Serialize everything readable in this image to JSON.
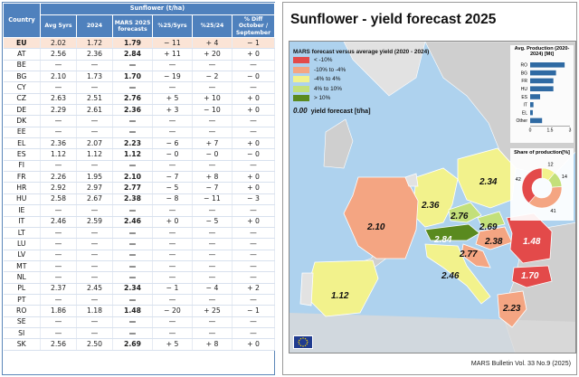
{
  "table": {
    "country_header": "Country",
    "group_header": "Sunflower (t/ha)",
    "columns": [
      "Avg 5yrs",
      "2024",
      "MARS 2025 forecasts",
      "%25/5yrs",
      "%25/24",
      "% Diff October / September"
    ],
    "rows": [
      {
        "c": "EU",
        "a": "2.02",
        "b": "1.72",
        "m": "1.79",
        "p1": "− 11",
        "p2": "+ 4",
        "d": "− 1"
      },
      {
        "c": "AT",
        "a": "2.56",
        "b": "2.36",
        "m": "2.84",
        "p1": "+ 11",
        "p2": "+ 20",
        "d": "+ 0"
      },
      {
        "c": "BE",
        "a": "—",
        "b": "—",
        "m": "—",
        "p1": "—",
        "p2": "—",
        "d": "—"
      },
      {
        "c": "BG",
        "a": "2.10",
        "b": "1.73",
        "m": "1.70",
        "p1": "− 19",
        "p2": "− 2",
        "d": "− 0"
      },
      {
        "c": "CY",
        "a": "—",
        "b": "—",
        "m": "—",
        "p1": "—",
        "p2": "—",
        "d": "—"
      },
      {
        "c": "CZ",
        "a": "2.63",
        "b": "2.51",
        "m": "2.76",
        "p1": "+ 5",
        "p2": "+ 10",
        "d": "+ 0"
      },
      {
        "c": "DE",
        "a": "2.29",
        "b": "2.61",
        "m": "2.36",
        "p1": "+ 3",
        "p2": "− 10",
        "d": "+ 0"
      },
      {
        "c": "DK",
        "a": "—",
        "b": "—",
        "m": "—",
        "p1": "—",
        "p2": "—",
        "d": "—"
      },
      {
        "c": "EE",
        "a": "—",
        "b": "—",
        "m": "—",
        "p1": "—",
        "p2": "—",
        "d": "—"
      },
      {
        "c": "EL",
        "a": "2.36",
        "b": "2.07",
        "m": "2.23",
        "p1": "− 6",
        "p2": "+ 7",
        "d": "+ 0"
      },
      {
        "c": "ES",
        "a": "1.12",
        "b": "1.12",
        "m": "1.12",
        "p1": "− 0",
        "p2": "− 0",
        "d": "− 0"
      },
      {
        "c": "FI",
        "a": "—",
        "b": "—",
        "m": "—",
        "p1": "—",
        "p2": "—",
        "d": "—"
      },
      {
        "c": "FR",
        "a": "2.26",
        "b": "1.95",
        "m": "2.10",
        "p1": "− 7",
        "p2": "+ 8",
        "d": "+ 0"
      },
      {
        "c": "HR",
        "a": "2.92",
        "b": "2.97",
        "m": "2.77",
        "p1": "− 5",
        "p2": "− 7",
        "d": "+ 0"
      },
      {
        "c": "HU",
        "a": "2.58",
        "b": "2.67",
        "m": "2.38",
        "p1": "− 8",
        "p2": "− 11",
        "d": "− 3"
      },
      {
        "c": "IE",
        "a": "—",
        "b": "—",
        "m": "—",
        "p1": "—",
        "p2": "—",
        "d": "—"
      },
      {
        "c": "IT",
        "a": "2.46",
        "b": "2.59",
        "m": "2.46",
        "p1": "+ 0",
        "p2": "− 5",
        "d": "+ 0"
      },
      {
        "c": "LT",
        "a": "—",
        "b": "—",
        "m": "—",
        "p1": "—",
        "p2": "—",
        "d": "—"
      },
      {
        "c": "LU",
        "a": "—",
        "b": "—",
        "m": "—",
        "p1": "—",
        "p2": "—",
        "d": "—"
      },
      {
        "c": "LV",
        "a": "—",
        "b": "—",
        "m": "—",
        "p1": "—",
        "p2": "—",
        "d": "—"
      },
      {
        "c": "MT",
        "a": "—",
        "b": "—",
        "m": "—",
        "p1": "—",
        "p2": "—",
        "d": "—"
      },
      {
        "c": "NL",
        "a": "—",
        "b": "—",
        "m": "—",
        "p1": "—",
        "p2": "—",
        "d": "—"
      },
      {
        "c": "PL",
        "a": "2.37",
        "b": "2.45",
        "m": "2.34",
        "p1": "− 1",
        "p2": "− 4",
        "d": "+ 2"
      },
      {
        "c": "PT",
        "a": "—",
        "b": "—",
        "m": "—",
        "p1": "—",
        "p2": "—",
        "d": "—"
      },
      {
        "c": "RO",
        "a": "1.86",
        "b": "1.18",
        "m": "1.48",
        "p1": "− 20",
        "p2": "+ 25",
        "d": "− 1"
      },
      {
        "c": "SE",
        "a": "—",
        "b": "—",
        "m": "—",
        "p1": "—",
        "p2": "—",
        "d": "—"
      },
      {
        "c": "SI",
        "a": "—",
        "b": "—",
        "m": "—",
        "p1": "—",
        "p2": "—",
        "d": "—"
      },
      {
        "c": "SK",
        "a": "2.56",
        "b": "2.50",
        "m": "2.69",
        "p1": "+ 5",
        "p2": "+ 8",
        "d": "+ 0"
      }
    ]
  },
  "map": {
    "title": "Sunflower - yield forecast 2025",
    "legend_title": "MARS forecast versus average yield (2020 - 2024)",
    "legend": [
      {
        "label": "< -10%",
        "color": "#e34a4a"
      },
      {
        "label": "-10% to -4%",
        "color": "#f4a582"
      },
      {
        "label": "-4% to 4%",
        "color": "#f2f28c"
      },
      {
        "label": "4% to 10%",
        "color": "#c3e07a"
      },
      {
        "label": "> 10%",
        "color": "#5a8a1f"
      }
    ],
    "note_value": "0.00",
    "note_text": "yield forecast [t/ha]",
    "country_labels": [
      {
        "v": "2.36",
        "cls": ""
      },
      {
        "v": "2.34",
        "cls": ""
      },
      {
        "v": "2.76",
        "cls": ""
      },
      {
        "v": "2.69",
        "cls": ""
      },
      {
        "v": "2.84",
        "cls": "lt"
      },
      {
        "v": "2.38",
        "cls": ""
      },
      {
        "v": "2.10",
        "cls": ""
      },
      {
        "v": "1.48",
        "cls": "lt"
      },
      {
        "v": "2.77",
        "cls": ""
      },
      {
        "v": "2.46",
        "cls": ""
      },
      {
        "v": "1.70",
        "cls": "lt"
      },
      {
        "v": "1.12",
        "cls": ""
      },
      {
        "v": "2.23",
        "cls": ""
      }
    ],
    "bulletin": "MARS Bulletin Vol. 33 No.9 (2025)"
  },
  "chart_data": [
    {
      "type": "bar",
      "title": "Avg. Production (2020-2024) [Mt]",
      "categories": [
        "RO",
        "BG",
        "FR",
        "HU",
        "ES",
        "IT",
        "EL",
        "Other"
      ],
      "values": [
        2.6,
        1.95,
        1.75,
        1.75,
        0.75,
        0.25,
        0.2,
        0.9
      ],
      "xlim": [
        0,
        3
      ],
      "xticks": [
        "0",
        "1.5",
        "3"
      ],
      "color": "#2f6aa3"
    },
    {
      "type": "pie",
      "title": "Share of production[%]",
      "slices": [
        {
          "label": "12",
          "value": 12,
          "color": "#f2f28c"
        },
        {
          "label": "14",
          "value": 14,
          "color": "#c3e07a"
        },
        {
          "label": "41",
          "value": 41,
          "color": "#f4a582"
        },
        {
          "label": "42",
          "value": 42,
          "color": "#e34a4a"
        }
      ]
    }
  ]
}
